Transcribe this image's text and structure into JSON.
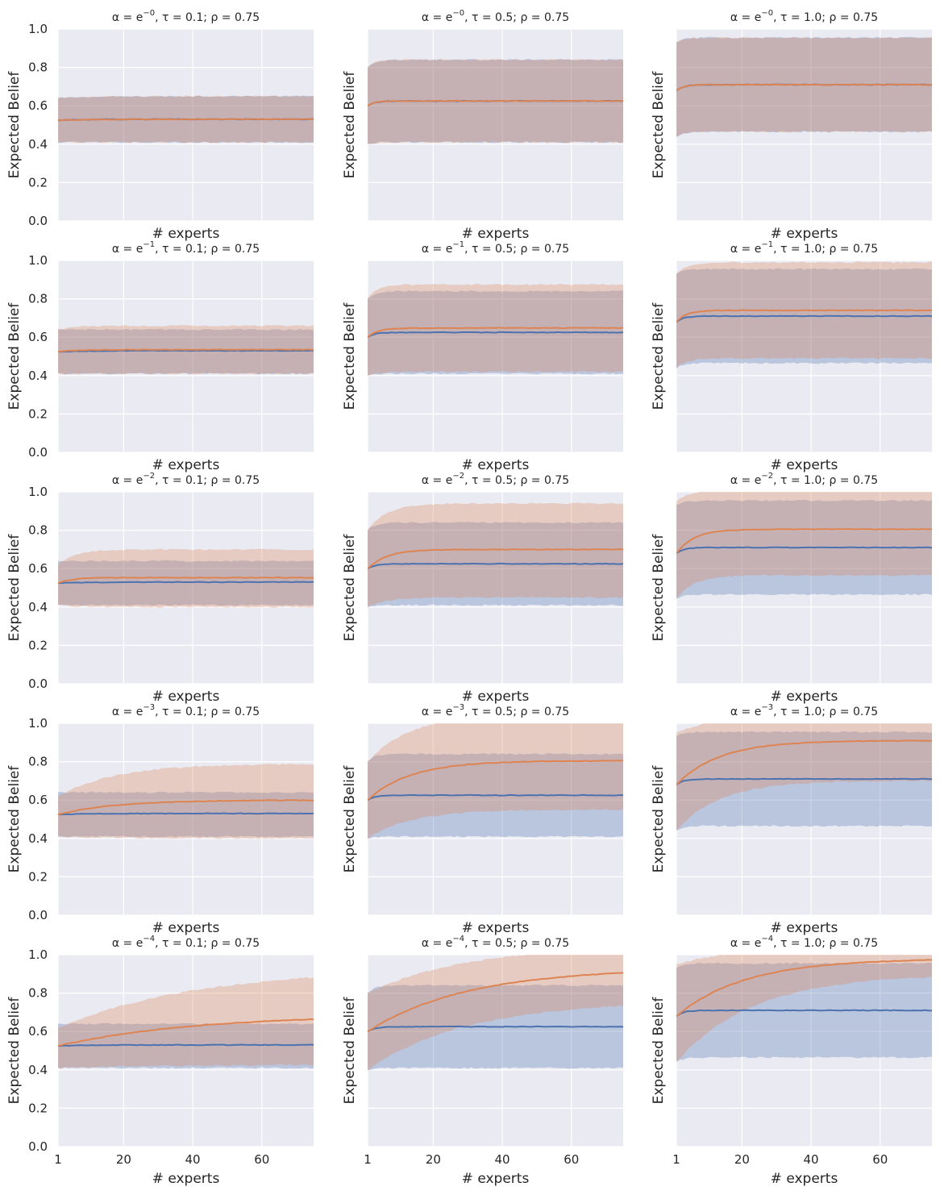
{
  "chart_data": {
    "type": "line",
    "grid": true,
    "rows": 5,
    "cols": 3,
    "xlabel": "# experts",
    "ylabel": "Expected Belief",
    "xlim": [
      1,
      75
    ],
    "ylim": [
      0,
      1
    ],
    "xticks": [
      1,
      20,
      40,
      60
    ],
    "yticks": [
      0.0,
      0.2,
      0.4,
      0.6,
      0.8,
      1.0
    ],
    "colors": {
      "series1": "#4c72b0",
      "series2": "#dd8452",
      "background": "#eaeaf2",
      "grid": "#ffffff"
    },
    "panels": [
      {
        "title": {
          "pre": "α = e",
          "exp": "−0",
          "post": ",  τ = 0.1; ρ = 0.75"
        },
        "series": [
          {
            "start": 0.525,
            "end": 0.53,
            "k": 0.1,
            "lower": [
              0.41,
              0.41,
              0.1
            ],
            "upper": [
              0.64,
              0.65,
              0.1
            ]
          },
          {
            "start": 0.525,
            "end": 0.53,
            "k": 0.1,
            "lower": [
              0.41,
              0.41,
              0.1
            ],
            "upper": [
              0.64,
              0.65,
              0.1
            ]
          }
        ]
      },
      {
        "title": {
          "pre": "α = e",
          "exp": "−0",
          "post": ",  τ = 0.5; ρ = 0.75"
        },
        "series": [
          {
            "start": 0.6,
            "end": 0.625,
            "k": 0.5,
            "lower": [
              0.4,
              0.41,
              0.5
            ],
            "upper": [
              0.8,
              0.84,
              0.5
            ]
          },
          {
            "start": 0.6,
            "end": 0.625,
            "k": 0.5,
            "lower": [
              0.4,
              0.41,
              0.5
            ],
            "upper": [
              0.8,
              0.84,
              0.5
            ]
          }
        ]
      },
      {
        "title": {
          "pre": "α = e",
          "exp": "−0",
          "post": ",  τ = 1.0; ρ = 0.75"
        },
        "series": [
          {
            "start": 0.68,
            "end": 0.71,
            "k": 0.5,
            "lower": [
              0.44,
              0.465,
              0.5
            ],
            "upper": [
              0.93,
              0.955,
              0.5
            ]
          },
          {
            "start": 0.68,
            "end": 0.71,
            "k": 0.5,
            "lower": [
              0.44,
              0.465,
              0.5
            ],
            "upper": [
              0.93,
              0.955,
              0.5
            ]
          }
        ]
      },
      {
        "title": {
          "pre": "α = e",
          "exp": "−1",
          "post": ",  τ = 0.1; ρ = 0.75"
        },
        "series": [
          {
            "start": 0.525,
            "end": 0.53,
            "k": 0.1,
            "lower": [
              0.41,
              0.41,
              0.1
            ],
            "upper": [
              0.64,
              0.64,
              0.1
            ]
          },
          {
            "start": 0.525,
            "end": 0.535,
            "k": 0.2,
            "lower": [
              0.41,
              0.41,
              0.1
            ],
            "upper": [
              0.64,
              0.66,
              0.2
            ]
          }
        ]
      },
      {
        "title": {
          "pre": "α = e",
          "exp": "−1",
          "post": ",  τ = 0.5; ρ = 0.75"
        },
        "series": [
          {
            "start": 0.6,
            "end": 0.625,
            "k": 0.5,
            "lower": [
              0.4,
              0.41,
              0.5
            ],
            "upper": [
              0.8,
              0.84,
              0.5
            ]
          },
          {
            "start": 0.6,
            "end": 0.648,
            "k": 0.35,
            "lower": [
              0.4,
              0.42,
              0.35
            ],
            "upper": [
              0.8,
              0.875,
              0.35
            ]
          }
        ]
      },
      {
        "title": {
          "pre": "α = e",
          "exp": "−1",
          "post": ",  τ = 1.0; ρ = 0.75"
        },
        "series": [
          {
            "start": 0.68,
            "end": 0.71,
            "k": 0.5,
            "lower": [
              0.44,
              0.465,
              0.5
            ],
            "upper": [
              0.93,
              0.955,
              0.5
            ]
          },
          {
            "start": 0.68,
            "end": 0.74,
            "k": 0.35,
            "lower": [
              0.44,
              0.49,
              0.35
            ],
            "upper": [
              0.93,
              0.99,
              0.35
            ]
          }
        ]
      },
      {
        "title": {
          "pre": "α = e",
          "exp": "−2",
          "post": ",  τ = 0.1; ρ = 0.75"
        },
        "series": [
          {
            "start": 0.525,
            "end": 0.53,
            "k": 0.1,
            "lower": [
              0.41,
              0.41,
              0.1
            ],
            "upper": [
              0.64,
              0.64,
              0.1
            ]
          },
          {
            "start": 0.525,
            "end": 0.553,
            "k": 0.25,
            "lower": [
              0.41,
              0.4,
              0.2
            ],
            "upper": [
              0.62,
              0.7,
              0.2
            ]
          }
        ]
      },
      {
        "title": {
          "pre": "α = e",
          "exp": "−2",
          "post": ",  τ = 0.5; ρ = 0.75"
        },
        "series": [
          {
            "start": 0.6,
            "end": 0.625,
            "k": 0.5,
            "lower": [
              0.4,
              0.41,
              0.5
            ],
            "upper": [
              0.8,
              0.84,
              0.5
            ]
          },
          {
            "start": 0.6,
            "end": 0.7,
            "k": 0.18,
            "lower": [
              0.4,
              0.45,
              0.18
            ],
            "upper": [
              0.8,
              0.94,
              0.18
            ]
          }
        ]
      },
      {
        "title": {
          "pre": "α = e",
          "exp": "−2",
          "post": ",  τ = 1.0; ρ = 0.75"
        },
        "series": [
          {
            "start": 0.68,
            "end": 0.71,
            "k": 0.5,
            "lower": [
              0.44,
              0.465,
              0.5
            ],
            "upper": [
              0.93,
              0.955,
              0.5
            ]
          },
          {
            "start": 0.68,
            "end": 0.805,
            "k": 0.2,
            "lower": [
              0.44,
              0.565,
              0.2
            ],
            "upper": [
              0.95,
              1.02,
              0.2
            ]
          }
        ]
      },
      {
        "title": {
          "pre": "α = e",
          "exp": "−3",
          "post": ",  τ = 0.1; ρ = 0.75"
        },
        "series": [
          {
            "start": 0.525,
            "end": 0.53,
            "k": 0.1,
            "lower": [
              0.41,
              0.41,
              0.1
            ],
            "upper": [
              0.64,
              0.64,
              0.1
            ]
          },
          {
            "start": 0.525,
            "end": 0.6,
            "k": 0.06,
            "lower": [
              0.41,
              0.4,
              0.06
            ],
            "upper": [
              0.62,
              0.79,
              0.06
            ]
          }
        ]
      },
      {
        "title": {
          "pre": "α = e",
          "exp": "−3",
          "post": ",  τ = 0.5; ρ = 0.75"
        },
        "series": [
          {
            "start": 0.6,
            "end": 0.625,
            "k": 0.5,
            "lower": [
              0.4,
              0.41,
              0.5
            ],
            "upper": [
              0.8,
              0.84,
              0.5
            ]
          },
          {
            "start": 0.6,
            "end": 0.805,
            "k": 0.08,
            "lower": [
              0.4,
              0.55,
              0.08
            ],
            "upper": [
              0.8,
              1.05,
              0.08
            ]
          }
        ]
      },
      {
        "title": {
          "pre": "α = e",
          "exp": "−3",
          "post": ",  τ = 1.0; ρ = 0.75"
        },
        "series": [
          {
            "start": 0.68,
            "end": 0.71,
            "k": 0.5,
            "lower": [
              0.44,
              0.465,
              0.5
            ],
            "upper": [
              0.93,
              0.955,
              0.5
            ]
          },
          {
            "start": 0.68,
            "end": 0.91,
            "k": 0.08,
            "lower": [
              0.44,
              0.7,
              0.08
            ],
            "upper": [
              0.95,
              1.05,
              0.08
            ]
          }
        ]
      },
      {
        "title": {
          "pre": "α = e",
          "exp": "−4",
          "post": ",  τ = 0.1; ρ = 0.75"
        },
        "series": [
          {
            "start": 0.525,
            "end": 0.53,
            "k": 0.1,
            "lower": [
              0.41,
              0.41,
              0.1
            ],
            "upper": [
              0.64,
              0.64,
              0.1
            ]
          },
          {
            "start": 0.525,
            "end": 0.69,
            "k": 0.025,
            "lower": [
              0.41,
              0.43,
              0.025
            ],
            "upper": [
              0.62,
              0.93,
              0.025
            ]
          }
        ]
      },
      {
        "title": {
          "pre": "α = e",
          "exp": "−4",
          "post": ",  τ = 0.5; ρ = 0.75"
        },
        "series": [
          {
            "start": 0.6,
            "end": 0.625,
            "k": 0.5,
            "lower": [
              0.4,
              0.41,
              0.5
            ],
            "upper": [
              0.8,
              0.84,
              0.5
            ]
          },
          {
            "start": 0.6,
            "end": 0.93,
            "k": 0.035,
            "lower": [
              0.4,
              0.76,
              0.035
            ],
            "upper": [
              0.8,
              1.05,
              0.035
            ]
          }
        ]
      },
      {
        "title": {
          "pre": "α = e",
          "exp": "−4",
          "post": ",  τ = 1.0; ρ = 0.75"
        },
        "series": [
          {
            "start": 0.68,
            "end": 0.71,
            "k": 0.5,
            "lower": [
              0.44,
              0.465,
              0.5
            ],
            "upper": [
              0.93,
              0.955,
              0.5
            ]
          },
          {
            "start": 0.68,
            "end": 0.98,
            "k": 0.05,
            "lower": [
              0.44,
              0.9,
              0.045
            ],
            "upper": [
              0.95,
              1.05,
              0.05
            ]
          }
        ]
      }
    ]
  }
}
